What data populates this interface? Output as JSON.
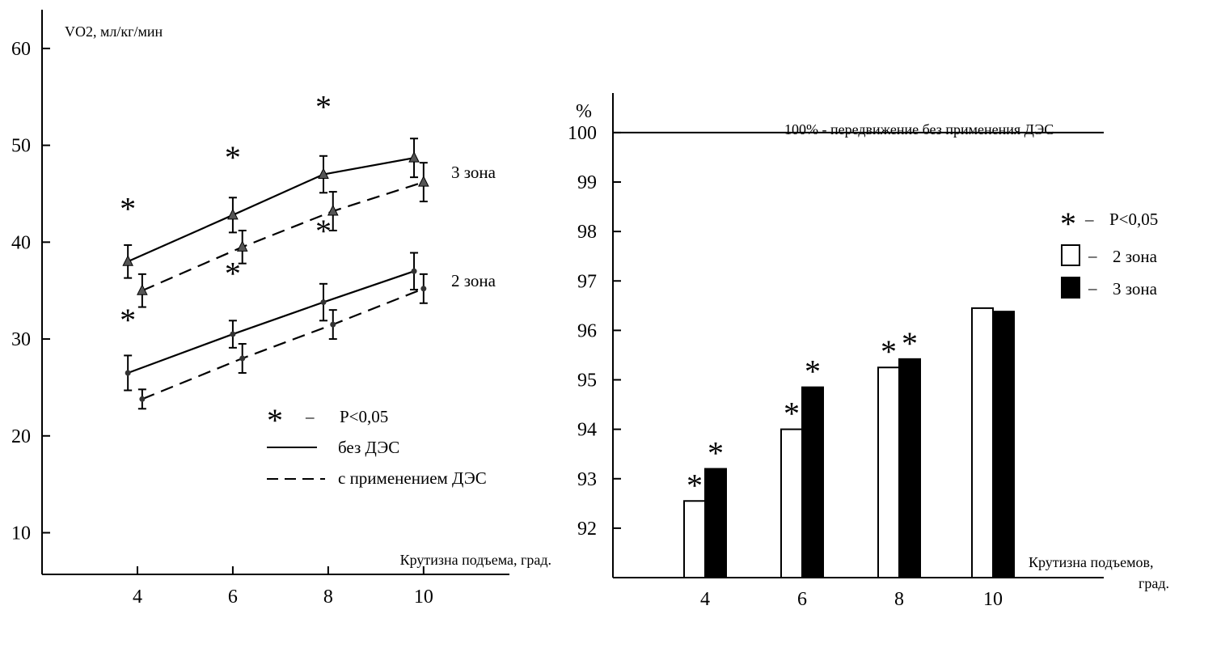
{
  "chart_data": [
    {
      "type": "line",
      "ylabel": "VO2, мл/кг/мин",
      "xlabel": "Крутизна подъема, град.",
      "x": [
        4,
        6,
        8,
        10
      ],
      "xlim": [
        2,
        11.8
      ],
      "ylim": [
        5.7,
        64
      ],
      "yticks": [
        10,
        20,
        30,
        40,
        50,
        60
      ],
      "xticks": [
        4,
        6,
        8,
        10
      ],
      "zone_labels": [
        {
          "text": "3 зона",
          "x": 10.9,
          "y": 47.3
        },
        {
          "text": "2 зона",
          "x": 10.9,
          "y": 35.7
        }
      ],
      "series": [
        {
          "style": "solid",
          "marker": "triangle",
          "x": [
            3.8,
            6.0,
            7.9,
            9.8
          ],
          "values": [
            38.0,
            42.8,
            47.0,
            48.7
          ],
          "err": [
            1.7,
            1.8,
            1.9,
            2.0
          ]
        },
        {
          "style": "dashed",
          "marker": "triangle",
          "x": [
            4.1,
            6.2,
            8.1,
            10.0
          ],
          "values": [
            35.0,
            39.5,
            43.2,
            46.2
          ],
          "err": [
            1.7,
            1.7,
            2.0,
            2.0
          ]
        },
        {
          "style": "solid",
          "marker": "dot",
          "x": [
            3.8,
            6.0,
            7.9,
            9.8
          ],
          "values": [
            26.5,
            30.5,
            33.8,
            37.0
          ],
          "err": [
            1.8,
            1.4,
            1.9,
            1.9
          ]
        },
        {
          "style": "dashed",
          "marker": "dot",
          "x": [
            4.1,
            6.2,
            8.1,
            10.0
          ],
          "values": [
            23.8,
            28.0,
            31.5,
            35.2
          ],
          "err": [
            1.0,
            1.5,
            1.5,
            1.5
          ]
        }
      ],
      "significance": [
        {
          "x": 3.8,
          "y": 43.5
        },
        {
          "x": 6.0,
          "y": 48.8
        },
        {
          "x": 7.9,
          "y": 54.0
        },
        {
          "x": 3.8,
          "y": 32.0
        },
        {
          "x": 6.0,
          "y": 36.8
        },
        {
          "x": 7.9,
          "y": 41.2
        }
      ],
      "legend": [
        {
          "symbol": "*",
          "dash": "–",
          "text": "P<0,05"
        },
        {
          "symbol": "solid-line",
          "text": "без ДЭС"
        },
        {
          "symbol": "dashed-line",
          "text": "с  применением ДЭС"
        }
      ]
    },
    {
      "type": "bar",
      "ylabel": "%",
      "xlabel": "Крутизна подъемов, град.",
      "categories": [
        "4",
        "6",
        "8",
        "10"
      ],
      "ylim": [
        91.0,
        100.8
      ],
      "yticks": [
        92,
        93,
        94,
        95,
        96,
        97,
        98,
        99,
        100
      ],
      "reference_line": {
        "value": 100,
        "label": "100% - передвижение без применения ДЭС"
      },
      "series": [
        {
          "name": "2 зона",
          "fill": "white",
          "values": [
            92.55,
            94.0,
            95.25,
            96.45
          ]
        },
        {
          "name": "3 зона",
          "fill": "black",
          "values": [
            93.2,
            94.85,
            95.42,
            96.38
          ]
        }
      ],
      "significant": [
        [
          true,
          true
        ],
        [
          true,
          true
        ],
        [
          true,
          true
        ],
        [
          false,
          false
        ]
      ],
      "legend": [
        {
          "symbol": "*",
          "dash": "–",
          "text": "P<0,05"
        },
        {
          "symbol": "white-box",
          "dash": "–",
          "text": "2 зона"
        },
        {
          "symbol": "black-box",
          "dash": "–",
          "text": "3 зона"
        }
      ]
    }
  ]
}
